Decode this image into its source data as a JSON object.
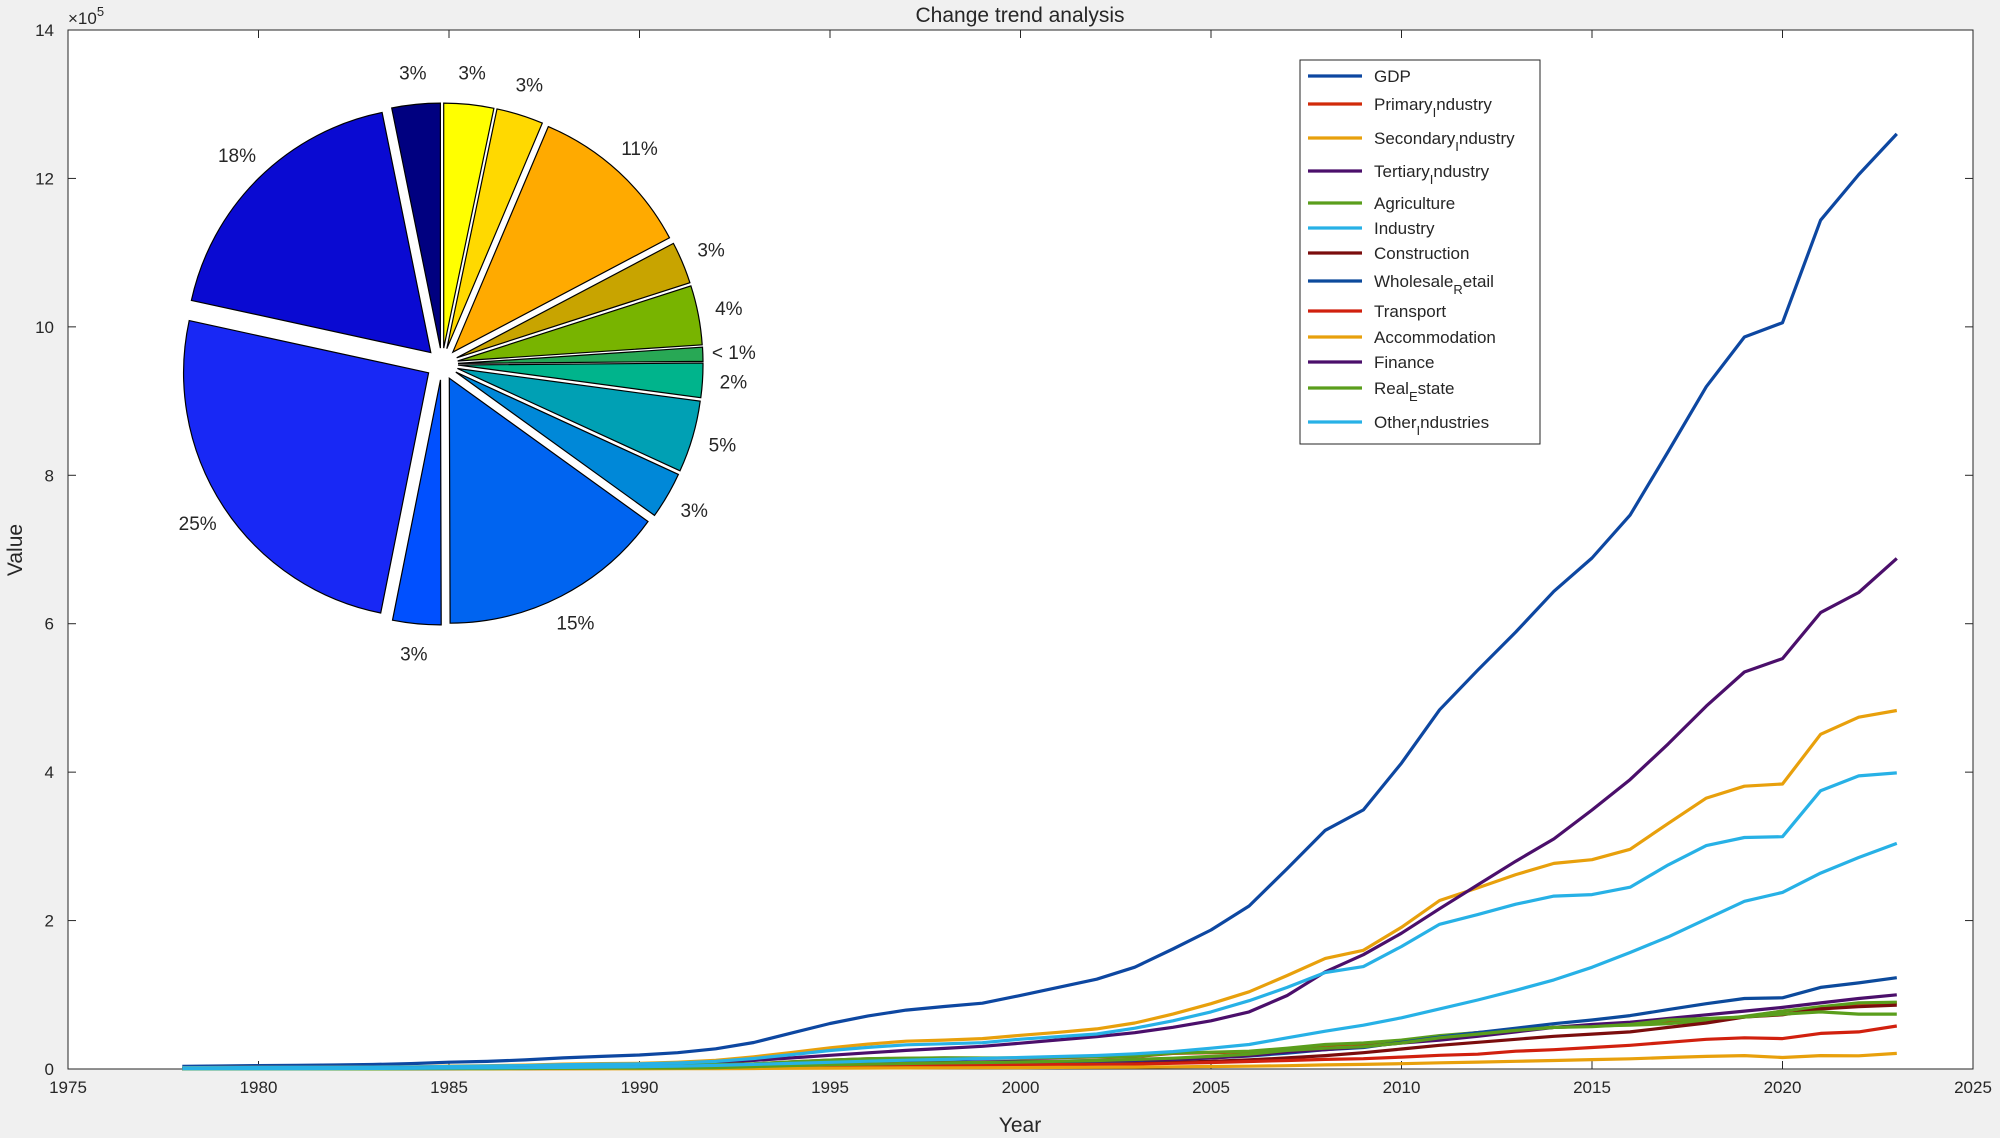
{
  "chart_data": [
    {
      "type": "line",
      "title": "Change trend analysis",
      "xlabel": "Year",
      "ylabel": "Value",
      "x_exponent_label": "×10",
      "y_exponent": "5",
      "xlim": [
        1975,
        2025
      ],
      "ylim": [
        0,
        14
      ],
      "xticks": [
        1975,
        1980,
        1985,
        1990,
        1995,
        2000,
        2005,
        2010,
        2015,
        2020,
        2025
      ],
      "yticks": [
        0,
        2,
        4,
        6,
        8,
        10,
        12,
        14
      ],
      "grid": false,
      "legend_position": "top-right",
      "x": [
        1978,
        1979,
        1980,
        1981,
        1982,
        1983,
        1984,
        1985,
        1986,
        1987,
        1988,
        1989,
        1990,
        1991,
        1992,
        1993,
        1994,
        1995,
        1996,
        1997,
        1998,
        1999,
        2000,
        2001,
        2002,
        2003,
        2004,
        2005,
        2006,
        2007,
        2008,
        2009,
        2010,
        2011,
        2012,
        2013,
        2014,
        2015,
        2016,
        2017,
        2018,
        2019,
        2020,
        2021,
        2022,
        2023
      ],
      "series": [
        {
          "name": "GDP",
          "legend_base": "GDP",
          "legend_sub": "",
          "legend_rest": "",
          "color": "#0d47a1",
          "values": [
            0.037,
            0.041,
            0.046,
            0.049,
            0.054,
            0.06,
            0.073,
            0.092,
            0.103,
            0.122,
            0.15,
            0.17,
            0.189,
            0.22,
            0.272,
            0.357,
            0.486,
            0.613,
            0.715,
            0.793,
            0.842,
            0.887,
            0.992,
            1.101,
            1.21,
            1.372,
            1.617,
            1.873,
            2.197,
            2.7,
            3.216,
            3.491,
            4.122,
            4.84,
            5.373,
            5.888,
            6.437,
            6.886,
            7.464,
            8.32,
            9.193,
            9.864,
            10.056,
            11.437,
            12.052,
            12.6
          ]
        },
        {
          "name": "Primary_Industry",
          "legend_base": "Primary",
          "legend_sub": "I",
          "legend_rest": "ndustry",
          "color": "#d12a0a",
          "values": [
            0.01,
            0.013,
            0.014,
            0.016,
            0.018,
            0.02,
            0.023,
            0.026,
            0.028,
            0.032,
            0.038,
            0.043,
            0.051,
            0.054,
            0.058,
            0.069,
            0.095,
            0.12,
            0.138,
            0.144,
            0.148,
            0.147,
            0.147,
            0.155,
            0.162,
            0.169,
            0.21,
            0.22,
            0.23,
            0.27,
            0.32,
            0.34,
            0.38,
            0.44,
            0.49,
            0.53,
            0.56,
            0.58,
            0.6,
            0.62,
            0.65,
            0.7,
            0.78,
            0.83,
            0.88,
            0.89
          ]
        },
        {
          "name": "Secondary_Industry",
          "legend_base": "Secondary",
          "legend_sub": "I",
          "legend_rest": "ndustry",
          "color": "#e8a00c",
          "values": [
            0.018,
            0.02,
            0.022,
            0.022,
            0.024,
            0.026,
            0.03,
            0.039,
            0.045,
            0.053,
            0.066,
            0.073,
            0.077,
            0.091,
            0.117,
            0.164,
            0.223,
            0.286,
            0.336,
            0.374,
            0.39,
            0.41,
            0.454,
            0.495,
            0.54,
            0.62,
            0.74,
            0.88,
            1.04,
            1.26,
            1.49,
            1.6,
            1.91,
            2.27,
            2.44,
            2.62,
            2.77,
            2.82,
            2.96,
            3.31,
            3.65,
            3.81,
            3.84,
            4.51,
            4.74,
            4.83
          ]
        },
        {
          "name": "Tertiary_Industry",
          "legend_base": "Tertiary",
          "legend_sub": "I",
          "legend_rest": "ndustry",
          "color": "#4b0f6b",
          "values": [
            0.009,
            0.009,
            0.01,
            0.011,
            0.012,
            0.014,
            0.018,
            0.025,
            0.03,
            0.037,
            0.046,
            0.054,
            0.059,
            0.072,
            0.091,
            0.116,
            0.15,
            0.185,
            0.218,
            0.25,
            0.277,
            0.306,
            0.347,
            0.392,
            0.436,
            0.489,
            0.562,
            0.65,
            0.77,
            0.99,
            1.31,
            1.54,
            1.83,
            2.16,
            2.48,
            2.8,
            3.1,
            3.49,
            3.9,
            4.38,
            4.89,
            5.35,
            5.53,
            6.15,
            6.42,
            6.88
          ]
        },
        {
          "name": "Agriculture",
          "legend_base": "Agriculture",
          "legend_sub": "",
          "legend_rest": "",
          "color": "#5a9e1c",
          "values": [
            0.011,
            0.013,
            0.014,
            0.016,
            0.018,
            0.02,
            0.024,
            0.026,
            0.028,
            0.032,
            0.039,
            0.043,
            0.051,
            0.054,
            0.059,
            0.069,
            0.096,
            0.12,
            0.139,
            0.145,
            0.149,
            0.148,
            0.15,
            0.158,
            0.165,
            0.172,
            0.215,
            0.226,
            0.24,
            0.28,
            0.33,
            0.35,
            0.39,
            0.45,
            0.49,
            0.53,
            0.56,
            0.58,
            0.59,
            0.61,
            0.65,
            0.71,
            0.78,
            0.84,
            0.89,
            0.9
          ]
        },
        {
          "name": "Industry",
          "legend_base": "Industry",
          "legend_sub": "",
          "legend_rest": "",
          "color": "#27b1e6",
          "values": [
            0.016,
            0.018,
            0.02,
            0.021,
            0.022,
            0.024,
            0.027,
            0.034,
            0.04,
            0.046,
            0.058,
            0.065,
            0.069,
            0.081,
            0.103,
            0.142,
            0.194,
            0.249,
            0.291,
            0.326,
            0.34,
            0.355,
            0.401,
            0.437,
            0.471,
            0.55,
            0.65,
            0.77,
            0.92,
            1.1,
            1.3,
            1.38,
            1.65,
            1.95,
            2.08,
            2.22,
            2.33,
            2.35,
            2.45,
            2.75,
            3.01,
            3.12,
            3.13,
            3.75,
            3.95,
            3.99
          ]
        },
        {
          "name": "Construction",
          "legend_base": "Construction",
          "legend_sub": "",
          "legend_rest": "",
          "color": "#7b0d0d",
          "values": [
            0.002,
            0.003,
            0.003,
            0.003,
            0.003,
            0.004,
            0.005,
            0.005,
            0.006,
            0.007,
            0.008,
            0.008,
            0.009,
            0.01,
            0.014,
            0.022,
            0.029,
            0.038,
            0.045,
            0.048,
            0.052,
            0.054,
            0.059,
            0.064,
            0.071,
            0.082,
            0.092,
            0.104,
            0.122,
            0.15,
            0.18,
            0.22,
            0.27,
            0.32,
            0.36,
            0.4,
            0.44,
            0.47,
            0.5,
            0.56,
            0.62,
            0.7,
            0.73,
            0.81,
            0.84,
            0.86
          ]
        },
        {
          "name": "Wholesale_Retail",
          "legend_base": "Wholesale",
          "legend_sub": "R",
          "legend_rest": "etail",
          "color": "#0c4a9c",
          "values": [
            0.003,
            0.003,
            0.003,
            0.004,
            0.004,
            0.005,
            0.007,
            0.009,
            0.011,
            0.014,
            0.018,
            0.019,
            0.019,
            0.023,
            0.03,
            0.037,
            0.045,
            0.055,
            0.064,
            0.071,
            0.076,
            0.08,
            0.087,
            0.095,
            0.103,
            0.114,
            0.128,
            0.15,
            0.175,
            0.214,
            0.26,
            0.29,
            0.36,
            0.43,
            0.49,
            0.55,
            0.61,
            0.66,
            0.72,
            0.8,
            0.88,
            0.95,
            0.96,
            1.1,
            1.16,
            1.23
          ]
        },
        {
          "name": "Transport",
          "legend_base": "Transport",
          "legend_sub": "",
          "legend_rest": "",
          "color": "#d1200e",
          "values": [
            0.002,
            0.002,
            0.002,
            0.002,
            0.003,
            0.003,
            0.003,
            0.004,
            0.005,
            0.005,
            0.006,
            0.007,
            0.012,
            0.014,
            0.017,
            0.021,
            0.027,
            0.032,
            0.038,
            0.042,
            0.046,
            0.05,
            0.054,
            0.059,
            0.063,
            0.066,
            0.077,
            0.087,
            0.101,
            0.115,
            0.13,
            0.139,
            0.16,
            0.185,
            0.2,
            0.24,
            0.26,
            0.29,
            0.32,
            0.36,
            0.4,
            0.42,
            0.41,
            0.48,
            0.5,
            0.58
          ]
        },
        {
          "name": "Accommodation",
          "legend_base": "Accommodation",
          "legend_sub": "",
          "legend_rest": "",
          "color": "#e8a00c",
          "values": [
            0.001,
            0.001,
            0.001,
            0.001,
            0.001,
            0.001,
            0.002,
            0.002,
            0.002,
            0.003,
            0.003,
            0.003,
            0.003,
            0.004,
            0.005,
            0.007,
            0.009,
            0.011,
            0.013,
            0.015,
            0.016,
            0.017,
            0.019,
            0.021,
            0.023,
            0.025,
            0.03,
            0.034,
            0.038,
            0.045,
            0.055,
            0.062,
            0.071,
            0.083,
            0.093,
            0.104,
            0.115,
            0.126,
            0.138,
            0.155,
            0.17,
            0.18,
            0.155,
            0.18,
            0.178,
            0.21
          ]
        },
        {
          "name": "Finance",
          "legend_base": "Finance",
          "legend_sub": "",
          "legend_rest": "",
          "color": "#4b0f6b",
          "values": [
            0.002,
            0.002,
            0.003,
            0.003,
            0.004,
            0.004,
            0.006,
            0.007,
            0.01,
            0.013,
            0.016,
            0.021,
            0.027,
            0.033,
            0.04,
            0.053,
            0.06,
            0.07,
            0.078,
            0.085,
            0.09,
            0.095,
            0.102,
            0.107,
            0.113,
            0.121,
            0.131,
            0.15,
            0.18,
            0.23,
            0.26,
            0.3,
            0.35,
            0.39,
            0.44,
            0.5,
            0.56,
            0.6,
            0.63,
            0.68,
            0.73,
            0.78,
            0.83,
            0.89,
            0.95,
            1.0
          ]
        },
        {
          "name": "Real_Estate",
          "legend_base": "Real",
          "legend_sub": "E",
          "legend_rest": "state",
          "color": "#5a9e1c",
          "values": [
            0.001,
            0.001,
            0.001,
            0.002,
            0.002,
            0.002,
            0.003,
            0.004,
            0.005,
            0.007,
            0.01,
            0.013,
            0.013,
            0.014,
            0.019,
            0.032,
            0.047,
            0.058,
            0.065,
            0.074,
            0.082,
            0.088,
            0.094,
            0.104,
            0.115,
            0.13,
            0.146,
            0.17,
            0.2,
            0.25,
            0.28,
            0.3,
            0.35,
            0.42,
            0.47,
            0.52,
            0.56,
            0.57,
            0.6,
            0.66,
            0.68,
            0.7,
            0.74,
            0.77,
            0.74,
            0.74
          ]
        },
        {
          "name": "Other_Industries",
          "legend_base": "Other",
          "legend_sub": "I",
          "legend_rest": "ndustries",
          "color": "#27b1e6",
          "values": [
            0.005,
            0.005,
            0.006,
            0.006,
            0.007,
            0.008,
            0.01,
            0.013,
            0.015,
            0.018,
            0.022,
            0.027,
            0.031,
            0.038,
            0.049,
            0.062,
            0.075,
            0.09,
            0.105,
            0.118,
            0.13,
            0.142,
            0.155,
            0.168,
            0.182,
            0.205,
            0.235,
            0.28,
            0.33,
            0.42,
            0.51,
            0.59,
            0.69,
            0.81,
            0.93,
            1.06,
            1.2,
            1.37,
            1.57,
            1.78,
            2.02,
            2.26,
            2.38,
            2.64,
            2.85,
            3.04
          ]
        }
      ]
    },
    {
      "type": "pie",
      "exploded": true,
      "slices": [
        {
          "label": "3%",
          "value": 3.2,
          "color": "#ffff00"
        },
        {
          "label": "3%",
          "value": 3.0,
          "color": "#ffd900"
        },
        {
          "label": "11%",
          "value": 10.6,
          "color": "#ffaa00"
        },
        {
          "label": "3%",
          "value": 2.7,
          "color": "#c8a400"
        },
        {
          "label": "4%",
          "value": 3.8,
          "color": "#78b400"
        },
        {
          "label": "< 1%",
          "value": 0.9,
          "color": "#28a855"
        },
        {
          "label": "2%",
          "value": 2.2,
          "color": "#00b48c"
        },
        {
          "label": "5%",
          "value": 4.6,
          "color": "#00a0b4"
        },
        {
          "label": "3%",
          "value": 3.0,
          "color": "#0088d8"
        },
        {
          "label": "15%",
          "value": 14.6,
          "color": "#0064f0"
        },
        {
          "label": "3%",
          "value": 3.1,
          "color": "#0050ff"
        },
        {
          "label": "25%",
          "value": 24.6,
          "color": "#1828f5"
        },
        {
          "label": "18%",
          "value": 17.9,
          "color": "#0a0ad2"
        },
        {
          "label": "3%",
          "value": 3.1,
          "color": "#000080"
        }
      ]
    }
  ]
}
